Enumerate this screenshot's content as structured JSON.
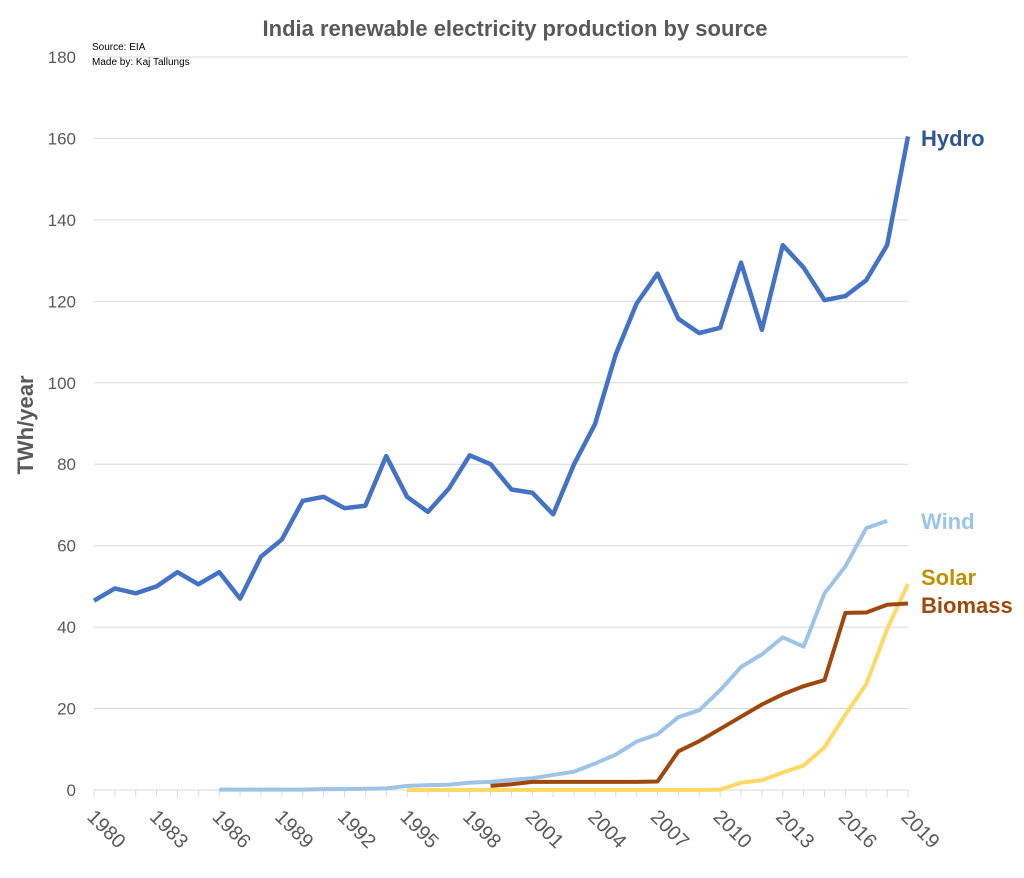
{
  "chart_data": {
    "type": "line",
    "title": "India renewable electricity production by source",
    "annotations": [
      "Source: EIA",
      "Made by: Kaj Tallungs"
    ],
    "ylabel": "TWh/year",
    "xlabel": "",
    "xlim": [
      1980,
      2019
    ],
    "ylim": [
      0,
      180
    ],
    "yticks": [
      0,
      20,
      40,
      60,
      80,
      100,
      120,
      140,
      160,
      180
    ],
    "xticks": [
      1980,
      1983,
      1986,
      1989,
      1992,
      1995,
      1998,
      2001,
      2004,
      2007,
      2010,
      2013,
      2016,
      2019
    ],
    "grid": "horizontal",
    "legend": "end-of-line labels",
    "series": [
      {
        "name": "Hydro",
        "color": "#4472c4",
        "label_color": "#2f5597",
        "start": 1980,
        "values": [
          46.5,
          49.5,
          48.3,
          50,
          53.5,
          50.5,
          53.5,
          47,
          57.3,
          61.5,
          71,
          72,
          69.2,
          69.8,
          82,
          72,
          68.3,
          74,
          82.2,
          80,
          73.8,
          73,
          67.7,
          80,
          89.8,
          107,
          119.5,
          126.8,
          115.7,
          112.2,
          113.5,
          129.5,
          113,
          133.8,
          128.3,
          120.3,
          121.3,
          125.2,
          133.8,
          160.5
        ]
      },
      {
        "name": "Wind",
        "color": "#9dc3e6",
        "label_color": "#9dc3e6",
        "start": 1986,
        "values": [
          0.1,
          0.1,
          0.1,
          0.1,
          0.1,
          0.2,
          0.2,
          0.3,
          0.4,
          1.0,
          1.2,
          1.3,
          1.8,
          2.0,
          2.5,
          2.9,
          3.7,
          4.5,
          6.5,
          8.7,
          11.9,
          13.7,
          17.9,
          19.6,
          24.5,
          30.2,
          33.3,
          37.5,
          35.2,
          48.3,
          54.9,
          64.3,
          66.1
        ]
      },
      {
        "name": "Solar",
        "color": "#ffd966",
        "label_color": "#bf9000",
        "start": 1995,
        "values": [
          0,
          0,
          0,
          0,
          0,
          0,
          0,
          0,
          0,
          0,
          0,
          0,
          0,
          0,
          0,
          0.1,
          1.8,
          2.4,
          4.3,
          6,
          10.5,
          18.5,
          26,
          39.5,
          50.6
        ]
      },
      {
        "name": "Biomass",
        "color": "#9e480e",
        "label_color": "#9e480e",
        "start": 1999,
        "values": [
          1.0,
          1.4,
          2.0,
          2.0,
          2.0,
          2.0,
          2.0,
          2.0,
          2.1,
          9.5,
          12,
          15,
          18,
          21,
          23.5,
          25.5,
          27,
          43.5,
          43.6,
          45.5,
          45.8
        ]
      }
    ]
  }
}
